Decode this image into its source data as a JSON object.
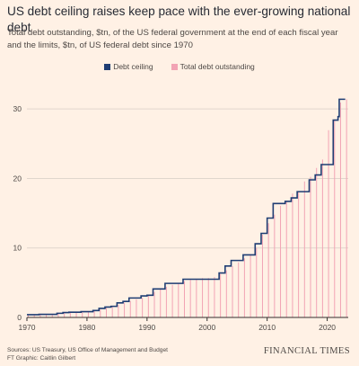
{
  "header": {
    "title": "US debt ceiling raises keep pace with the ever-growing national debt",
    "subtitle": "Total debt outstanding, $tn, of the US federal government at the end of each fiscal year and the limits, $tn, of US federal debt since 1970"
  },
  "footer": {
    "sources": "Sources: US Treasury, US Office of Management and Budget",
    "credit": "FT Graphic: Caitlin Gilbert",
    "brand": "FINANCIAL TIMES"
  },
  "colors": {
    "background": "#fff1e5",
    "ceiling": "#1f3d73",
    "debt": "#f2a3b4",
    "gridline": "#e0d6cd",
    "axis": "#33302e"
  },
  "chart_data": {
    "type": "line",
    "title": "US debt ceiling raises keep pace with the ever-growing national debt",
    "subtitle": "Total debt outstanding, $tn, of the US federal government at the end of each fiscal year and the limits, $tn, of US federal debt since 1970",
    "xlabel": "",
    "ylabel": "",
    "xlim": [
      1970,
      2023.5
    ],
    "ylim": [
      0,
      33
    ],
    "x_ticks": [
      1970,
      1980,
      1990,
      2000,
      2010,
      2020
    ],
    "y_ticks": [
      0,
      10,
      20,
      30
    ],
    "grid": true,
    "legend_position": "top-center",
    "series": [
      {
        "name": "Debt ceiling",
        "style": "step",
        "color": "#1f3d73",
        "points": [
          [
            1970,
            0.4
          ],
          [
            1972,
            0.45
          ],
          [
            1975,
            0.6
          ],
          [
            1976,
            0.7
          ],
          [
            1977,
            0.75
          ],
          [
            1979,
            0.83
          ],
          [
            1981,
            1.0
          ],
          [
            1982,
            1.3
          ],
          [
            1983,
            1.5
          ],
          [
            1984,
            1.6
          ],
          [
            1985,
            2.1
          ],
          [
            1986,
            2.3
          ],
          [
            1987,
            2.8
          ],
          [
            1989,
            3.1
          ],
          [
            1990,
            3.2
          ],
          [
            1991,
            4.1
          ],
          [
            1993,
            4.9
          ],
          [
            1996,
            5.5
          ],
          [
            2002,
            6.4
          ],
          [
            2003,
            7.4
          ],
          [
            2004,
            8.2
          ],
          [
            2006,
            9.0
          ],
          [
            2008,
            10.6
          ],
          [
            2009,
            12.1
          ],
          [
            2010,
            14.3
          ],
          [
            2011,
            16.4
          ],
          [
            2013,
            16.7
          ],
          [
            2014,
            17.2
          ],
          [
            2015,
            18.1
          ],
          [
            2017,
            19.8
          ],
          [
            2018,
            20.5
          ],
          [
            2019,
            22.0
          ],
          [
            2021,
            28.4
          ],
          [
            2021.8,
            28.9
          ],
          [
            2022,
            31.4
          ],
          [
            2023,
            31.4
          ]
        ]
      },
      {
        "name": "Total debt outstanding",
        "style": "bar",
        "color": "#f2a3b4",
        "x": [
          1970,
          1971,
          1972,
          1973,
          1974,
          1975,
          1976,
          1977,
          1978,
          1979,
          1980,
          1981,
          1982,
          1983,
          1984,
          1985,
          1986,
          1987,
          1988,
          1989,
          1990,
          1991,
          1992,
          1993,
          1994,
          1995,
          1996,
          1997,
          1998,
          1999,
          2000,
          2001,
          2002,
          2003,
          2004,
          2005,
          2006,
          2007,
          2008,
          2009,
          2010,
          2011,
          2012,
          2013,
          2014,
          2015,
          2016,
          2017,
          2018,
          2019,
          2020,
          2021,
          2022,
          2023
        ],
        "values": [
          0.38,
          0.41,
          0.44,
          0.47,
          0.48,
          0.54,
          0.63,
          0.71,
          0.78,
          0.83,
          0.91,
          1.0,
          1.14,
          1.37,
          1.56,
          1.82,
          2.12,
          2.35,
          2.6,
          2.86,
          3.23,
          3.67,
          4.06,
          4.41,
          4.69,
          4.97,
          5.22,
          5.41,
          5.53,
          5.66,
          5.67,
          5.81,
          6.23,
          6.78,
          7.38,
          7.93,
          8.51,
          9.01,
          10.02,
          11.91,
          13.56,
          14.79,
          16.07,
          16.74,
          17.82,
          18.15,
          19.57,
          20.24,
          21.52,
          22.72,
          26.95,
          28.43,
          30.93,
          31.4
        ]
      }
    ]
  }
}
